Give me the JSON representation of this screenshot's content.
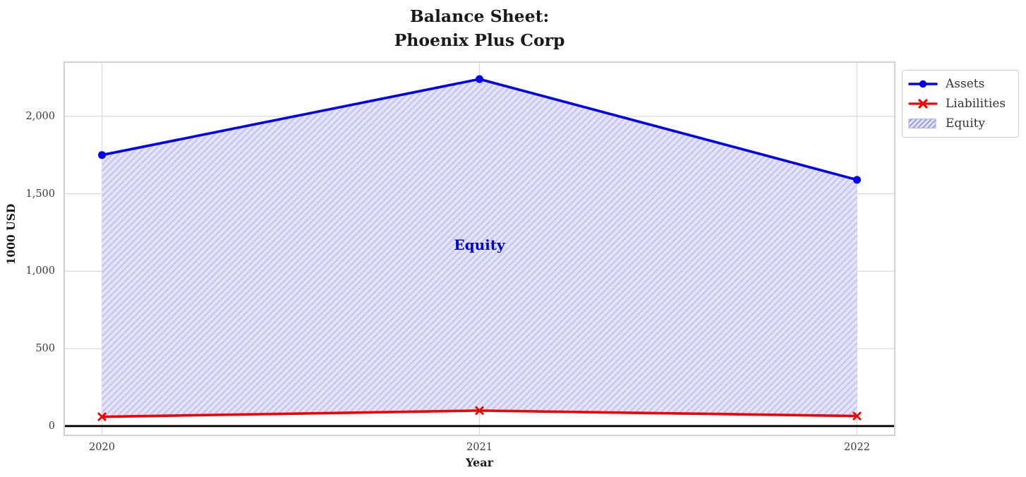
{
  "title": {
    "line1": "Balance Sheet:",
    "line2": "Phoenix Plus Corp"
  },
  "chart_data": {
    "type": "line",
    "x": [
      2020,
      2021,
      2022
    ],
    "categories": [
      "2020",
      "2021",
      "2022"
    ],
    "series": [
      {
        "name": "Assets",
        "color": "#0000f0",
        "marker": "circle",
        "values": [
          1750,
          2240,
          1590
        ]
      },
      {
        "name": "Liabilities",
        "color": "#f40000",
        "marker": "x",
        "values": [
          60,
          100,
          65
        ]
      }
    ],
    "fill_between": {
      "name": "Equity",
      "upper": "Assets",
      "lower": "Liabilities",
      "values": [
        1690,
        2140,
        1525
      ],
      "fill_color": "#e3e3fb",
      "hatch": "/",
      "hatch_color": "#c3c3f0",
      "edge_color": "#b3b3ee"
    },
    "annotation": {
      "text": "Equity",
      "x": 2021,
      "y": 1170,
      "color": "#0000cd"
    },
    "xlabel": "Year",
    "ylabel": "1000 USD",
    "yticks": [
      0,
      500,
      1000,
      1500,
      2000
    ],
    "ytick_labels": [
      "0",
      "500",
      "1,000",
      "1,500",
      "2,000"
    ],
    "xlim": [
      2019.9,
      2022.1
    ],
    "ylim": [
      -60,
      2350
    ],
    "grid": true,
    "zero_line": true,
    "legend": {
      "position": "outside upper right",
      "items": [
        "Assets",
        "Liabilities",
        "Equity"
      ]
    }
  },
  "colors": {
    "background": "#ffffff",
    "grid": "#dcdcdc",
    "spine": "#d0d0d0",
    "zero_line": "#000000",
    "text": "#1a1a1a",
    "tick_text": "#3a3a3a"
  }
}
